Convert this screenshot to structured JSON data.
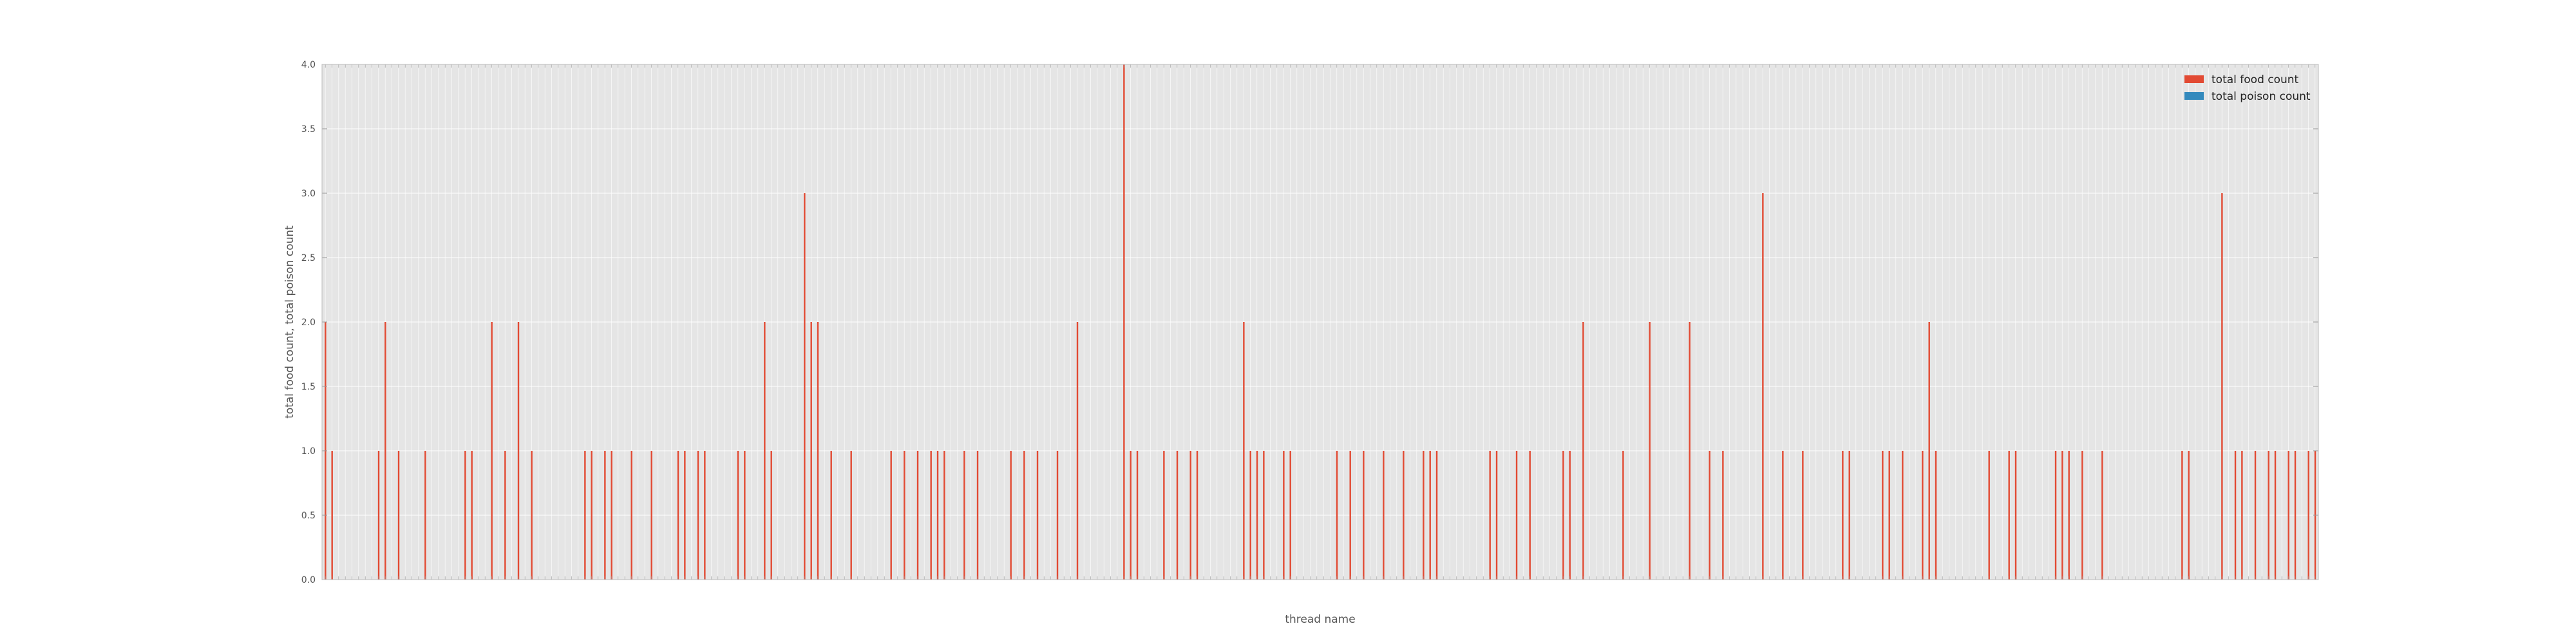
{
  "chart_data": {
    "type": "bar",
    "xlabel": "thread name",
    "ylabel": "total food count, total poison count",
    "ylim": [
      0,
      4.0
    ],
    "yticks": [
      "0.0",
      "0.5",
      "1.0",
      "1.5",
      "2.0",
      "2.5",
      "3.0",
      "3.5",
      "4.0"
    ],
    "grid": true,
    "legend_position": "top-right",
    "category_count": 300,
    "categories_note": "x tick labels are illegibly small in the screenshot (rotated numeric thread names)",
    "series": [
      {
        "name": "total food count",
        "color": "#e24a33",
        "nonzero_values": [
          [
            0,
            2
          ],
          [
            1,
            1
          ],
          [
            8,
            1
          ],
          [
            9,
            2
          ],
          [
            11,
            1
          ],
          [
            15,
            1
          ],
          [
            21,
            1
          ],
          [
            22,
            1
          ],
          [
            25,
            2
          ],
          [
            27,
            1
          ],
          [
            29,
            2
          ],
          [
            31,
            1
          ],
          [
            39,
            1
          ],
          [
            40,
            1
          ],
          [
            42,
            1
          ],
          [
            43,
            1
          ],
          [
            46,
            1
          ],
          [
            49,
            1
          ],
          [
            53,
            1
          ],
          [
            54,
            1
          ],
          [
            56,
            1
          ],
          [
            57,
            1
          ],
          [
            62,
            1
          ],
          [
            63,
            1
          ],
          [
            66,
            2
          ],
          [
            67,
            1
          ],
          [
            72,
            3
          ],
          [
            73,
            2
          ],
          [
            74,
            2
          ],
          [
            76,
            1
          ],
          [
            79,
            1
          ],
          [
            85,
            1
          ],
          [
            87,
            1
          ],
          [
            89,
            1
          ],
          [
            91,
            1
          ],
          [
            92,
            1
          ],
          [
            93,
            1
          ],
          [
            96,
            1
          ],
          [
            98,
            1
          ],
          [
            103,
            1
          ],
          [
            105,
            1
          ],
          [
            107,
            1
          ],
          [
            110,
            1
          ],
          [
            113,
            2
          ],
          [
            120,
            4
          ],
          [
            121,
            1
          ],
          [
            122,
            1
          ],
          [
            126,
            1
          ],
          [
            128,
            1
          ],
          [
            130,
            1
          ],
          [
            131,
            1
          ],
          [
            138,
            2
          ],
          [
            139,
            1
          ],
          [
            140,
            1
          ],
          [
            141,
            1
          ],
          [
            144,
            1
          ],
          [
            145,
            1
          ],
          [
            152,
            1
          ],
          [
            154,
            1
          ],
          [
            156,
            1
          ],
          [
            159,
            1
          ],
          [
            162,
            1
          ],
          [
            165,
            1
          ],
          [
            166,
            1
          ],
          [
            167,
            1
          ],
          [
            175,
            1
          ],
          [
            176,
            1
          ],
          [
            179,
            1
          ],
          [
            181,
            1
          ],
          [
            186,
            1
          ],
          [
            187,
            1
          ],
          [
            189,
            2
          ],
          [
            195,
            1
          ],
          [
            199,
            2
          ],
          [
            205,
            2
          ],
          [
            208,
            1
          ],
          [
            210,
            1
          ],
          [
            216,
            3
          ],
          [
            219,
            1
          ],
          [
            222,
            1
          ],
          [
            228,
            1
          ],
          [
            229,
            1
          ],
          [
            234,
            1
          ],
          [
            235,
            1
          ],
          [
            237,
            1
          ],
          [
            240,
            1
          ],
          [
            241,
            2
          ],
          [
            242,
            1
          ],
          [
            250,
            1
          ],
          [
            253,
            1
          ],
          [
            254,
            1
          ],
          [
            260,
            1
          ],
          [
            261,
            1
          ],
          [
            262,
            1
          ],
          [
            264,
            1
          ],
          [
            267,
            1
          ],
          [
            279,
            1
          ],
          [
            280,
            1
          ],
          [
            285,
            3
          ],
          [
            287,
            1
          ],
          [
            288,
            1
          ],
          [
            290,
            1
          ],
          [
            292,
            1
          ],
          [
            293,
            1
          ],
          [
            295,
            1
          ],
          [
            296,
            1
          ],
          [
            298,
            1
          ],
          [
            299,
            1
          ]
        ]
      },
      {
        "name": "total poison count",
        "color": "#348abd",
        "nonzero_values": []
      }
    ]
  }
}
